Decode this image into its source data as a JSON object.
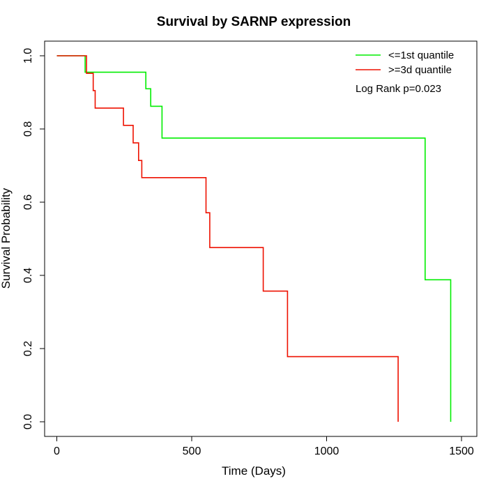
{
  "chart_data": {
    "type": "line",
    "title": "Survival by SARNP expression",
    "xlabel": "Time (Days)",
    "ylabel": "Survival Probability",
    "xlim": [
      0,
      1500
    ],
    "ylim": [
      0,
      1.0
    ],
    "x_ticks": [
      0,
      500,
      1000,
      1500
    ],
    "y_ticks": [
      0.0,
      0.2,
      0.4,
      0.6,
      0.8,
      1.0
    ],
    "x_tick_labels": [
      "0",
      "500",
      "1000",
      "1500"
    ],
    "y_tick_labels": [
      "0.0",
      "0.2",
      "0.4",
      "0.6",
      "0.8",
      "1.0"
    ],
    "grid": false,
    "legend_position": "top-right",
    "annotation": "Log Rank p=0.023",
    "series": [
      {
        "name": "<=1st quantile",
        "color": "#00ee00",
        "step": true,
        "points": [
          [
            0,
            1.0
          ],
          [
            105,
            1.0
          ],
          [
            105,
            0.955
          ],
          [
            330,
            0.955
          ],
          [
            330,
            0.91
          ],
          [
            348,
            0.91
          ],
          [
            348,
            0.862
          ],
          [
            390,
            0.862
          ],
          [
            390,
            0.775
          ],
          [
            1365,
            0.775
          ],
          [
            1365,
            0.388
          ],
          [
            1460,
            0.388
          ],
          [
            1460,
            0.0
          ]
        ]
      },
      {
        "name": ">=3d quantile",
        "color": "#ee1100",
        "step": true,
        "points": [
          [
            0,
            1.0
          ],
          [
            110,
            1.0
          ],
          [
            110,
            0.952
          ],
          [
            135,
            0.952
          ],
          [
            135,
            0.905
          ],
          [
            142,
            0.905
          ],
          [
            142,
            0.857
          ],
          [
            247,
            0.857
          ],
          [
            247,
            0.81
          ],
          [
            283,
            0.81
          ],
          [
            283,
            0.762
          ],
          [
            303,
            0.762
          ],
          [
            303,
            0.714
          ],
          [
            315,
            0.714
          ],
          [
            315,
            0.667
          ],
          [
            553,
            0.667
          ],
          [
            553,
            0.571
          ],
          [
            567,
            0.571
          ],
          [
            567,
            0.476
          ],
          [
            765,
            0.476
          ],
          [
            765,
            0.357
          ],
          [
            855,
            0.357
          ],
          [
            855,
            0.178
          ],
          [
            1265,
            0.178
          ],
          [
            1265,
            0.0
          ]
        ]
      }
    ]
  }
}
